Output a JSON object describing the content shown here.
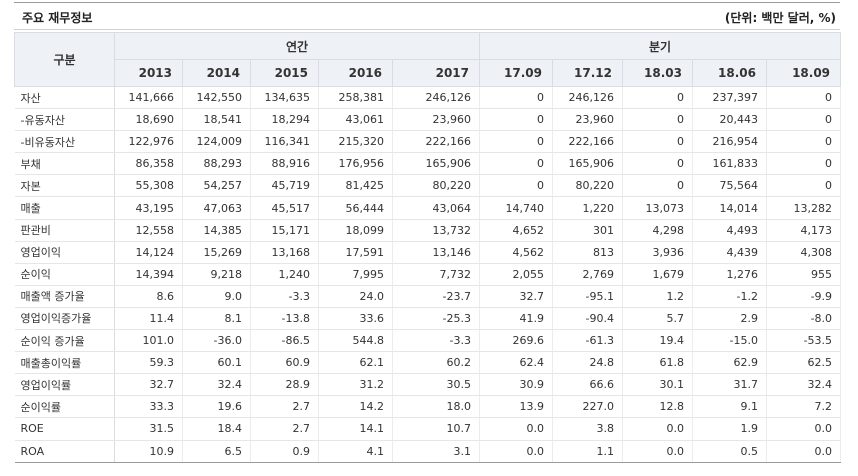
{
  "title": "주요 재무정보",
  "unit": "(단위: 백만 달러, %)",
  "header": {
    "category": "구분",
    "annual": "연간",
    "quarterly": "분기",
    "annual_years": [
      "2013",
      "2014",
      "2015",
      "2016",
      "2017"
    ],
    "quarters": [
      "17.09",
      "17.12",
      "18.03",
      "18.06",
      "18.09"
    ]
  },
  "rows": [
    {
      "label": "자산",
      "values": [
        "141,666",
        "142,550",
        "134,635",
        "258,381",
        "246,126",
        "0",
        "246,126",
        "0",
        "237,397",
        "0"
      ]
    },
    {
      "label": "-유동자산",
      "values": [
        "18,690",
        "18,541",
        "18,294",
        "43,061",
        "23,960",
        "0",
        "23,960",
        "0",
        "20,443",
        "0"
      ]
    },
    {
      "label": "-비유동자산",
      "values": [
        "122,976",
        "124,009",
        "116,341",
        "215,320",
        "222,166",
        "0",
        "222,166",
        "0",
        "216,954",
        "0"
      ]
    },
    {
      "label": "부채",
      "values": [
        "86,358",
        "88,293",
        "88,916",
        "176,956",
        "165,906",
        "0",
        "165,906",
        "0",
        "161,833",
        "0"
      ]
    },
    {
      "label": "자본",
      "values": [
        "55,308",
        "54,257",
        "45,719",
        "81,425",
        "80,220",
        "0",
        "80,220",
        "0",
        "75,564",
        "0"
      ]
    },
    {
      "label": "매출",
      "values": [
        "43,195",
        "47,063",
        "45,517",
        "56,444",
        "43,064",
        "14,740",
        "1,220",
        "13,073",
        "14,014",
        "13,282"
      ]
    },
    {
      "label": "판관비",
      "values": [
        "12,558",
        "14,385",
        "15,171",
        "18,099",
        "13,732",
        "4,652",
        "301",
        "4,298",
        "4,493",
        "4,173"
      ]
    },
    {
      "label": "영업이익",
      "values": [
        "14,124",
        "15,269",
        "13,168",
        "17,591",
        "13,146",
        "4,562",
        "813",
        "3,936",
        "4,439",
        "4,308"
      ]
    },
    {
      "label": "순이익",
      "values": [
        "14,394",
        "9,218",
        "1,240",
        "7,995",
        "7,732",
        "2,055",
        "2,769",
        "1,679",
        "1,276",
        "955"
      ]
    },
    {
      "label": "매출액 증가율",
      "values": [
        "8.6",
        "9.0",
        "-3.3",
        "24.0",
        "-23.7",
        "32.7",
        "-95.1",
        "1.2",
        "-1.2",
        "-9.9"
      ]
    },
    {
      "label": "영업이익증가율",
      "values": [
        "11.4",
        "8.1",
        "-13.8",
        "33.6",
        "-25.3",
        "41.9",
        "-90.4",
        "5.7",
        "2.9",
        "-8.0"
      ]
    },
    {
      "label": "순이익 증가율",
      "values": [
        "101.0",
        "-36.0",
        "-86.5",
        "544.8",
        "-3.3",
        "269.6",
        "-61.3",
        "19.4",
        "-15.0",
        "-53.5"
      ]
    },
    {
      "label": "매출총이익률",
      "values": [
        "59.3",
        "60.1",
        "60.9",
        "62.1",
        "60.2",
        "62.4",
        "24.8",
        "61.8",
        "62.9",
        "62.5"
      ]
    },
    {
      "label": "영업이익률",
      "values": [
        "32.7",
        "32.4",
        "28.9",
        "31.2",
        "30.5",
        "30.9",
        "66.6",
        "30.1",
        "31.7",
        "32.4"
      ]
    },
    {
      "label": "순이익률",
      "values": [
        "33.3",
        "19.6",
        "2.7",
        "14.2",
        "18.0",
        "13.9",
        "227.0",
        "12.8",
        "9.1",
        "7.2"
      ]
    },
    {
      "label": "ROE",
      "values": [
        "31.5",
        "18.4",
        "2.7",
        "14.1",
        "10.7",
        "0.0",
        "3.8",
        "0.0",
        "1.9",
        "0.0"
      ]
    },
    {
      "label": "ROA",
      "values": [
        "10.9",
        "6.5",
        "0.9",
        "4.1",
        "3.1",
        "0.0",
        "1.1",
        "0.0",
        "0.5",
        "0.0"
      ]
    }
  ]
}
